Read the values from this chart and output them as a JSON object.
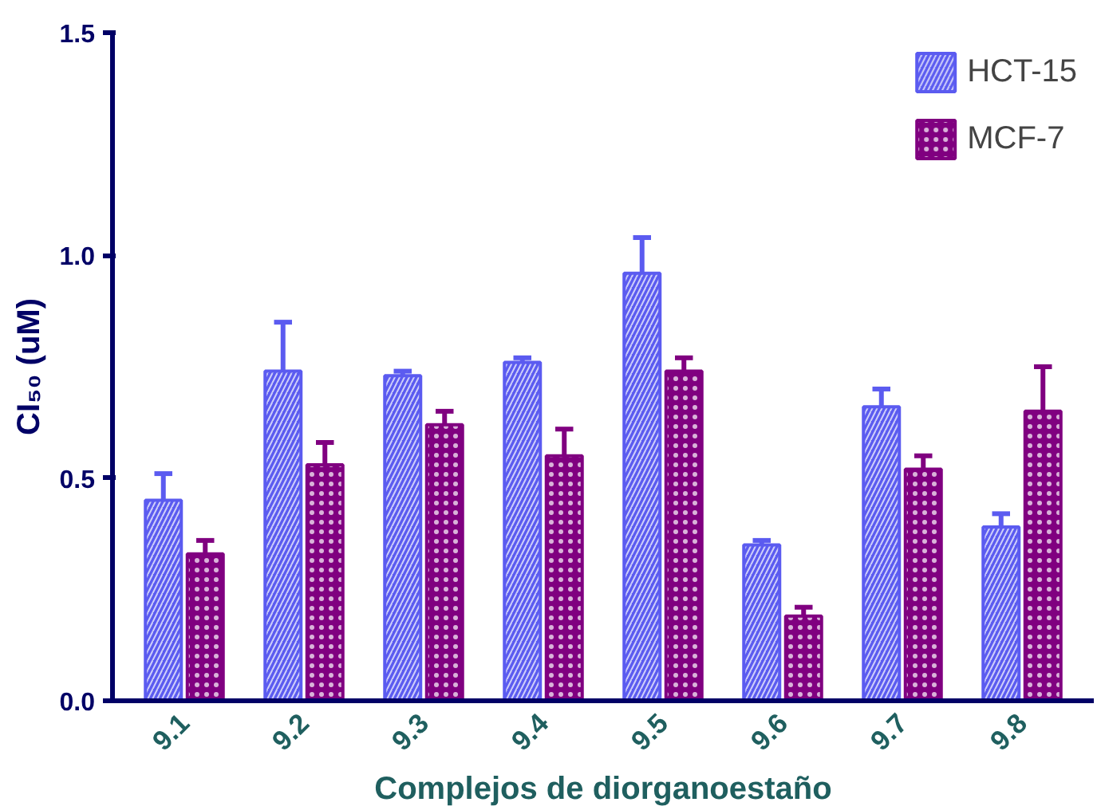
{
  "chart_data": {
    "type": "bar",
    "xlabel": "Complejos de diorganoestaño",
    "ylabel": "CI₅₀ (uM)",
    "categories": [
      "9.1",
      "9.2",
      "9.3",
      "9.4",
      "9.5",
      "9.6",
      "9.7",
      "9.8"
    ],
    "series": [
      {
        "name": "HCT-15",
        "color": "#5b5bf0",
        "values": [
          0.45,
          0.74,
          0.73,
          0.76,
          0.96,
          0.35,
          0.66,
          0.39
        ],
        "errors": [
          [
            0.45,
            0.51
          ],
          [
            0.74,
            0.85
          ],
          [
            0.73,
            0.74
          ],
          [
            0.76,
            0.77
          ],
          [
            0.96,
            1.04
          ],
          [
            0.35,
            0.36
          ],
          [
            0.66,
            0.7
          ],
          [
            0.39,
            0.42
          ]
        ]
      },
      {
        "name": "MCF-7",
        "color": "#800080",
        "values": [
          0.33,
          0.53,
          0.62,
          0.55,
          0.74,
          0.19,
          0.52,
          0.65
        ],
        "errors": [
          [
            0.33,
            0.36
          ],
          [
            0.53,
            0.58
          ],
          [
            0.62,
            0.65
          ],
          [
            0.55,
            0.61
          ],
          [
            0.74,
            0.77
          ],
          [
            0.19,
            0.21
          ],
          [
            0.52,
            0.55
          ],
          [
            0.65,
            0.75
          ]
        ]
      }
    ],
    "ylim": [
      0,
      1.5
    ],
    "yticks": [
      {
        "value": 0,
        "label": "0.0"
      },
      {
        "value": 0.5,
        "label": "0.5"
      },
      {
        "value": 1,
        "label": "1.0"
      },
      {
        "value": 1.5,
        "label": "1.5"
      }
    ],
    "grid": false,
    "legend": "top right"
  }
}
